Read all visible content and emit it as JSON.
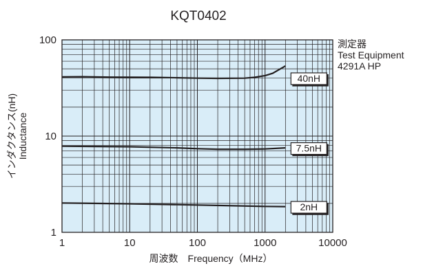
{
  "chart_data": {
    "type": "line",
    "title": "KQT0402",
    "xlabel": "周波数　Frequency（MHz）",
    "ylabel_lines": [
      "インダクタンス(nH)",
      "Inductance"
    ],
    "x_scale": "log",
    "y_scale": "log",
    "xlim": [
      1,
      10000
    ],
    "ylim": [
      1,
      100
    ],
    "x_ticks": [
      1,
      10,
      100,
      1000,
      10000
    ],
    "x_tick_labels": [
      "1",
      "10",
      "100",
      "1000",
      "10000"
    ],
    "y_ticks": [
      1,
      10,
      100
    ],
    "y_tick_labels": [
      "1",
      "10",
      "100"
    ],
    "grid": true,
    "colors": {
      "plot_background": "#d9edf8",
      "line": "#231f20"
    },
    "equipment_note": [
      "測定器",
      "Test Equipment",
      "4291A HP"
    ],
    "series": [
      {
        "name": "40nH",
        "x": [
          1,
          2,
          5,
          10,
          20,
          50,
          100,
          200,
          500,
          700,
          1000,
          1300,
          1600,
          2000
        ],
        "y": [
          41.2,
          41.4,
          41.0,
          40.9,
          40.8,
          40.4,
          40.0,
          39.8,
          40.0,
          40.8,
          42.5,
          45.0,
          49.0,
          53.5
        ]
      },
      {
        "name": "7.5nH",
        "x": [
          1,
          10,
          50,
          100,
          200,
          500,
          1000,
          2000
        ],
        "y": [
          7.85,
          7.75,
          7.55,
          7.4,
          7.3,
          7.3,
          7.35,
          7.55
        ]
      },
      {
        "name": "2nH",
        "x": [
          1,
          10,
          100,
          1000,
          2000
        ],
        "y": [
          2.02,
          1.98,
          1.92,
          1.86,
          1.85
        ]
      }
    ]
  }
}
